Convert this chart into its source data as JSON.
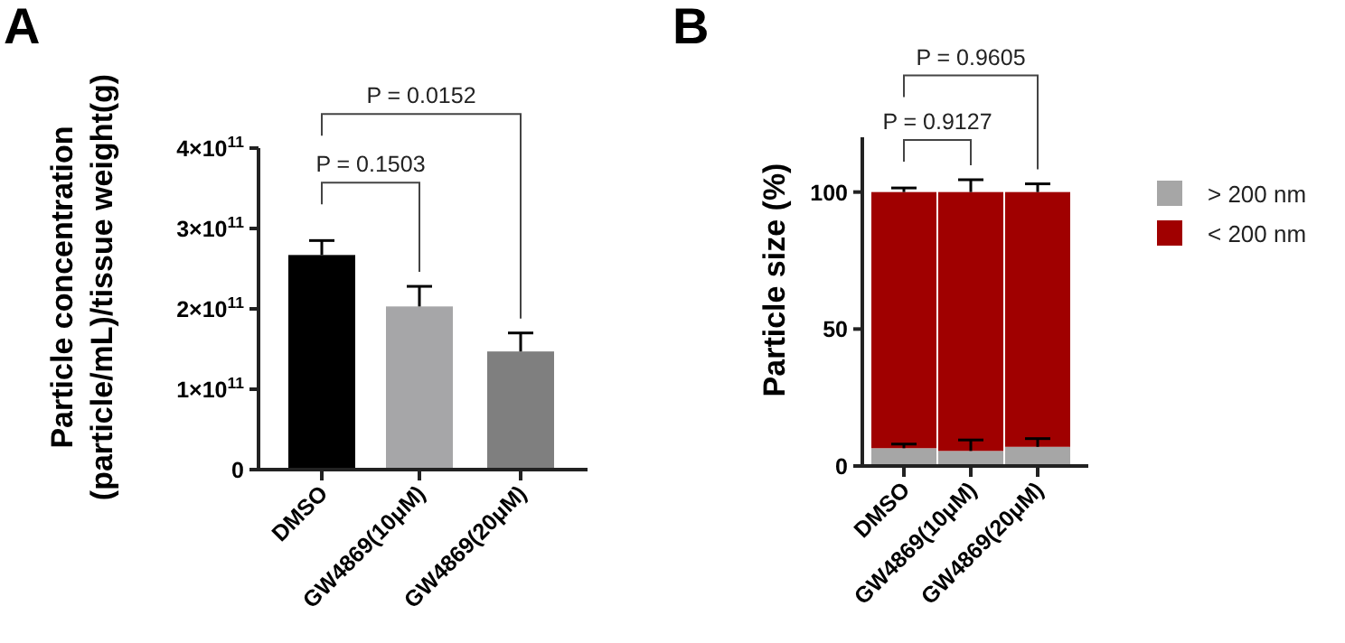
{
  "chart_data": [
    {
      "type": "bar",
      "title": "A",
      "ylabel": "Particle concentration\n(particle/mL)/tissue weight(g)",
      "categories": [
        "DMSO",
        "GW4869(10μM)",
        "GW4869(20μM)"
      ],
      "values": [
        267000000000.0,
        203000000000.0,
        147000000000.0
      ],
      "colors": [
        "#000000",
        "#a6a6a8",
        "#7f7f7f"
      ],
      "errors": [
        [
          267000000000.0,
          285000000000.0
        ],
        [
          203000000000.0,
          228000000000.0
        ],
        [
          147000000000.0,
          170000000000.0
        ]
      ],
      "ylim": [
        0,
        400000000000.0
      ],
      "yticks": [
        0,
        {
          "value": 100000000000.0,
          "label": "1×10$^{11}$"
        },
        {
          "value": 200000000000.0,
          "label": "2×10$^{11}$"
        },
        {
          "value": 300000000000.0,
          "label": "3×10$^{11}$"
        },
        {
          "value": 400000000000.0,
          "label": "4×10$^{11}$"
        }
      ],
      "annotations": [
        "P = 0.1503",
        "P = 0.0152"
      ],
      "legend": false
    },
    {
      "type": "bar",
      "title": "B",
      "ylabel": "Particle size (%)",
      "categories": [
        "DMSO",
        "GW4869(10μM)",
        "GW4869(20μM)"
      ],
      "stacked": true,
      "series": [
        {
          "name": "> 200 nm",
          "color": "#a6a6a6",
          "values": [
            6.5,
            5.5,
            7
          ],
          "errors": [
            [
              6.5,
              8
            ],
            [
              5.5,
              9.5
            ],
            [
              7,
              10
            ]
          ]
        },
        {
          "name": "< 200 nm",
          "color": "#a00000",
          "values": [
            93.5,
            94.5,
            93
          ],
          "errors": [
            [
              100,
              101.5
            ],
            [
              100,
              104.5
            ],
            [
              100,
              103
            ]
          ]
        }
      ],
      "ylim": [
        0,
        120
      ],
      "yticks": [
        0,
        50,
        100
      ],
      "annotations": [
        "P = 0.9127",
        "P = 0.9605"
      ],
      "legend": "right"
    }
  ]
}
